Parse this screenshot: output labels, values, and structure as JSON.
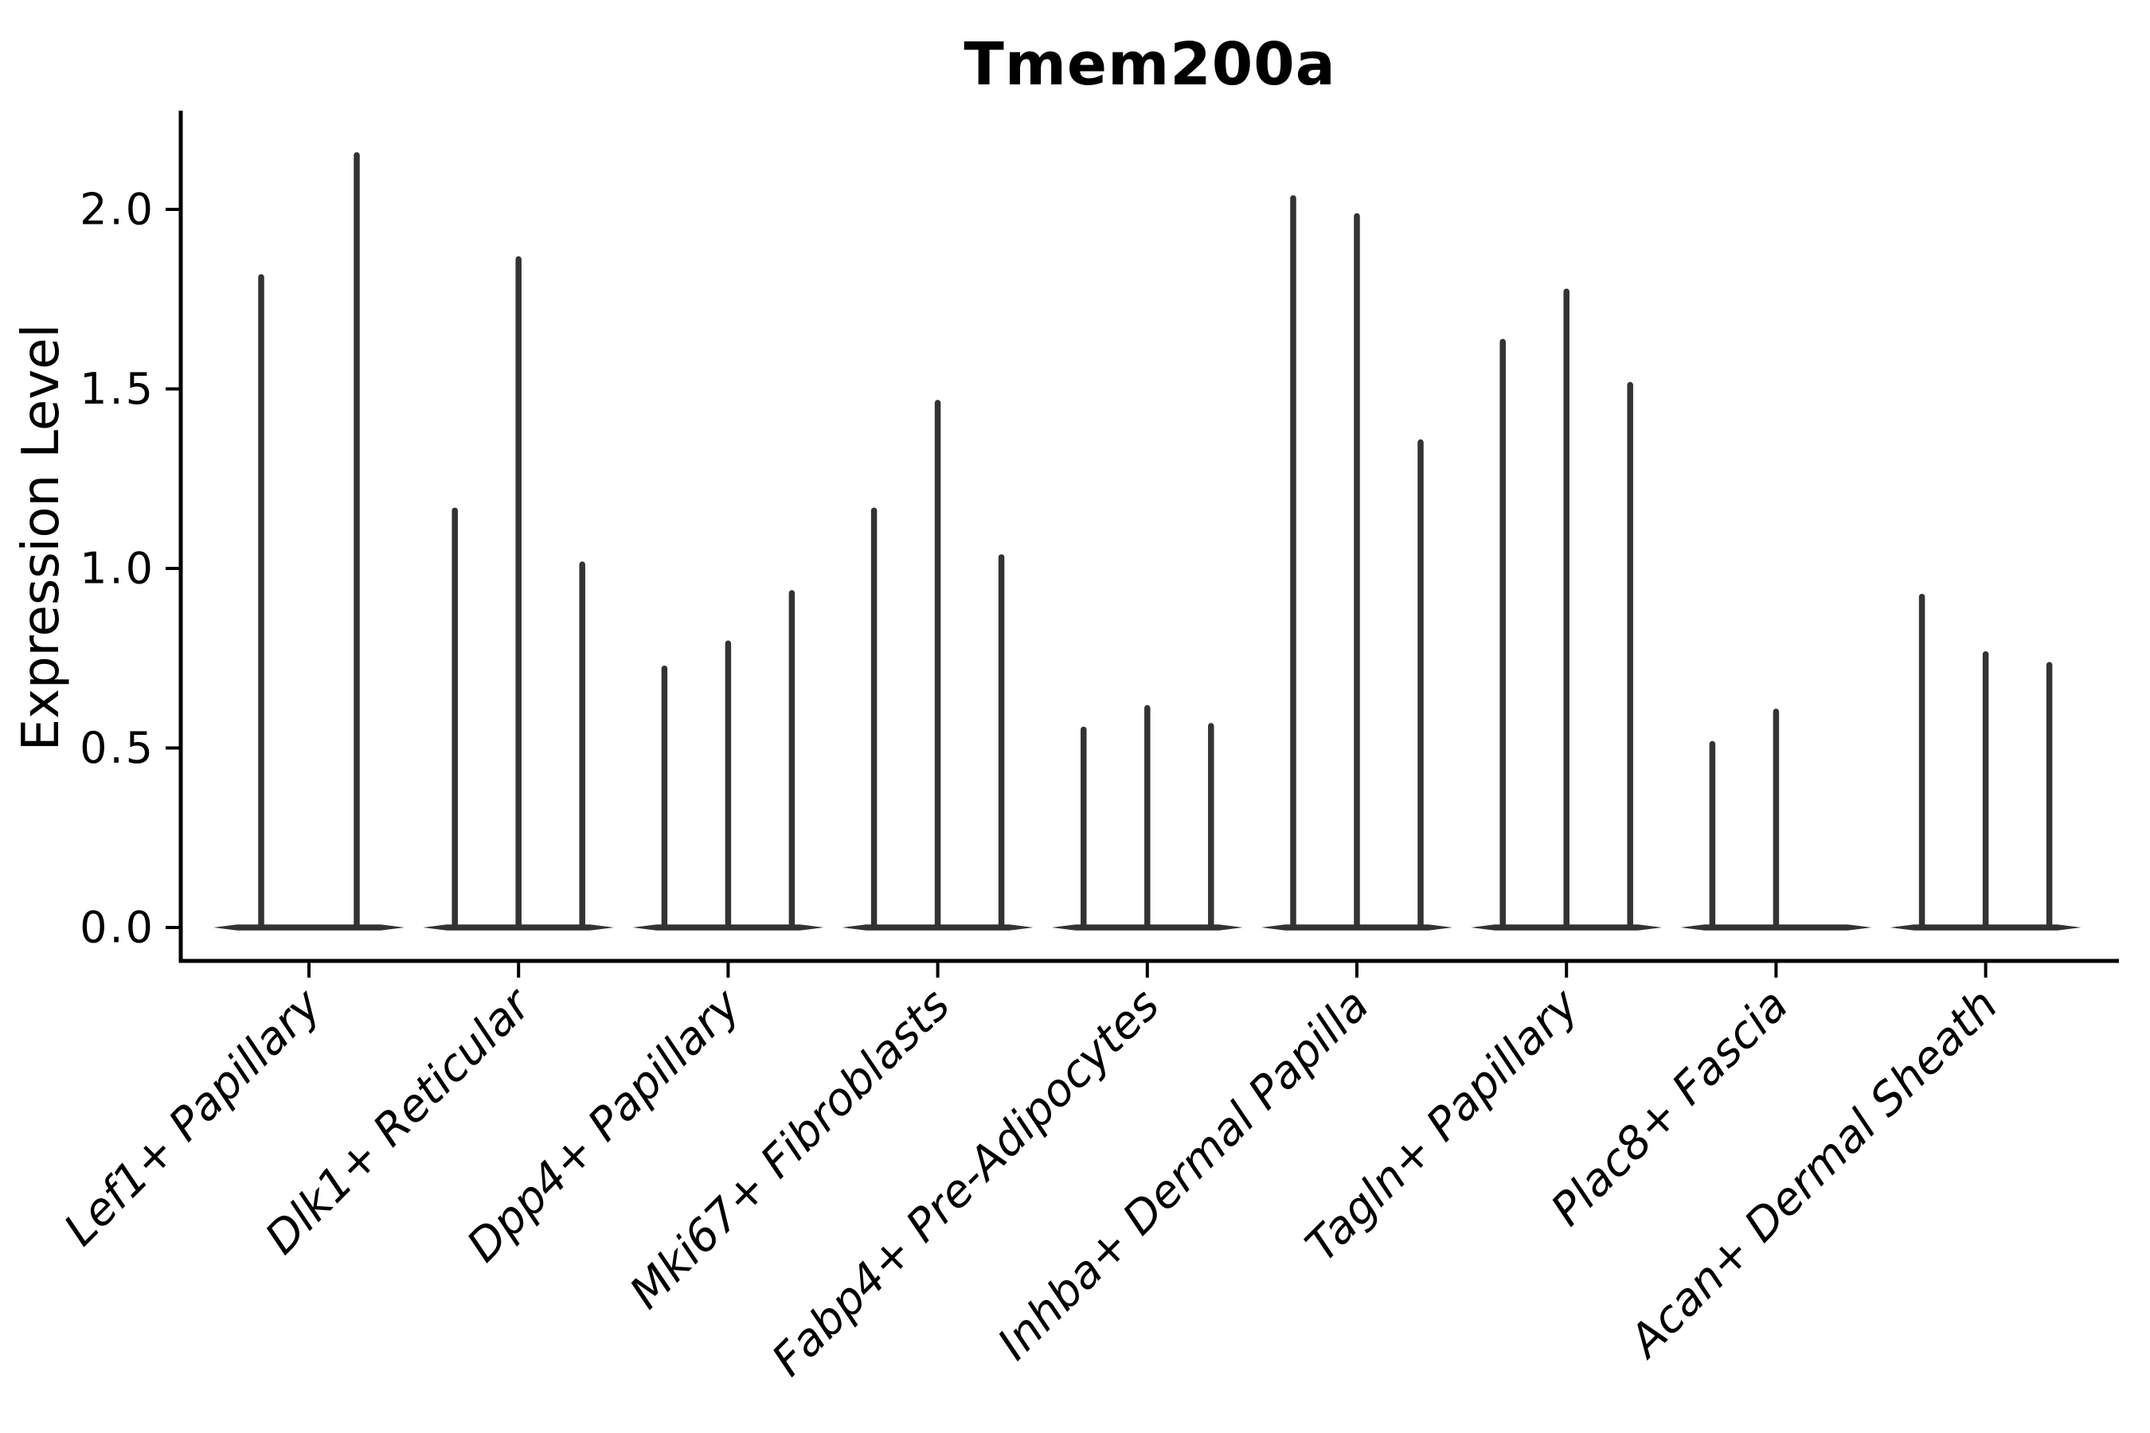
{
  "figure": {
    "background_color": "#ffffff",
    "text_color": "#000000"
  },
  "chart_data": {
    "type": "violin",
    "title": "Tmem200a",
    "xlabel": "",
    "ylabel": "Expression Level",
    "legend": "none",
    "grid": false,
    "ylim": [
      -0.093,
      2.28
    ],
    "y_ticks": [
      0.0,
      0.5,
      1.0,
      1.5,
      2.0
    ],
    "y_tick_labels": [
      "0.0",
      "0.5",
      "1.0",
      "1.5",
      "2.0"
    ],
    "violin_color": "#333333",
    "axis_color": "#000000",
    "baseline_value": 0.0,
    "categories": [
      "Lef1+ Papillary",
      "Dlk1+ Reticular",
      "Dpp4+ Papillary",
      "Mki67+ Fibroblasts",
      "Fabp4+ Pre-Adipocytes",
      "Inhba+ Dermal Papilla",
      "Tagln+ Papillary",
      "Plac8+ Fascia",
      "Acan+ Dermal Sheath"
    ],
    "groups": [
      {
        "category": "Lef1+ Papillary",
        "violin_maxima": [
          1.82,
          2.16
        ]
      },
      {
        "category": "Dlk1+ Reticular",
        "violin_maxima": [
          1.17,
          1.87,
          1.02
        ]
      },
      {
        "category": "Dpp4+ Papillary",
        "violin_maxima": [
          0.73,
          0.8,
          0.94
        ]
      },
      {
        "category": "Mki67+ Fibroblasts",
        "violin_maxima": [
          1.17,
          1.47,
          1.04
        ]
      },
      {
        "category": "Fabp4+ Pre-Adipocytes",
        "violin_maxima": [
          0.56,
          0.62,
          0.57
        ]
      },
      {
        "category": "Inhba+ Dermal Papilla",
        "violin_maxima": [
          2.04,
          1.99,
          1.36
        ]
      },
      {
        "category": "Tagln+ Papillary",
        "violin_maxima": [
          1.64,
          1.78,
          1.52
        ]
      },
      {
        "category": "Plac8+ Fascia",
        "violin_maxima": [
          0.52,
          0.61,
          0.0
        ]
      },
      {
        "category": "Acan+ Dermal Sheath",
        "violin_maxima": [
          0.93,
          0.77,
          0.74
        ]
      }
    ]
  }
}
